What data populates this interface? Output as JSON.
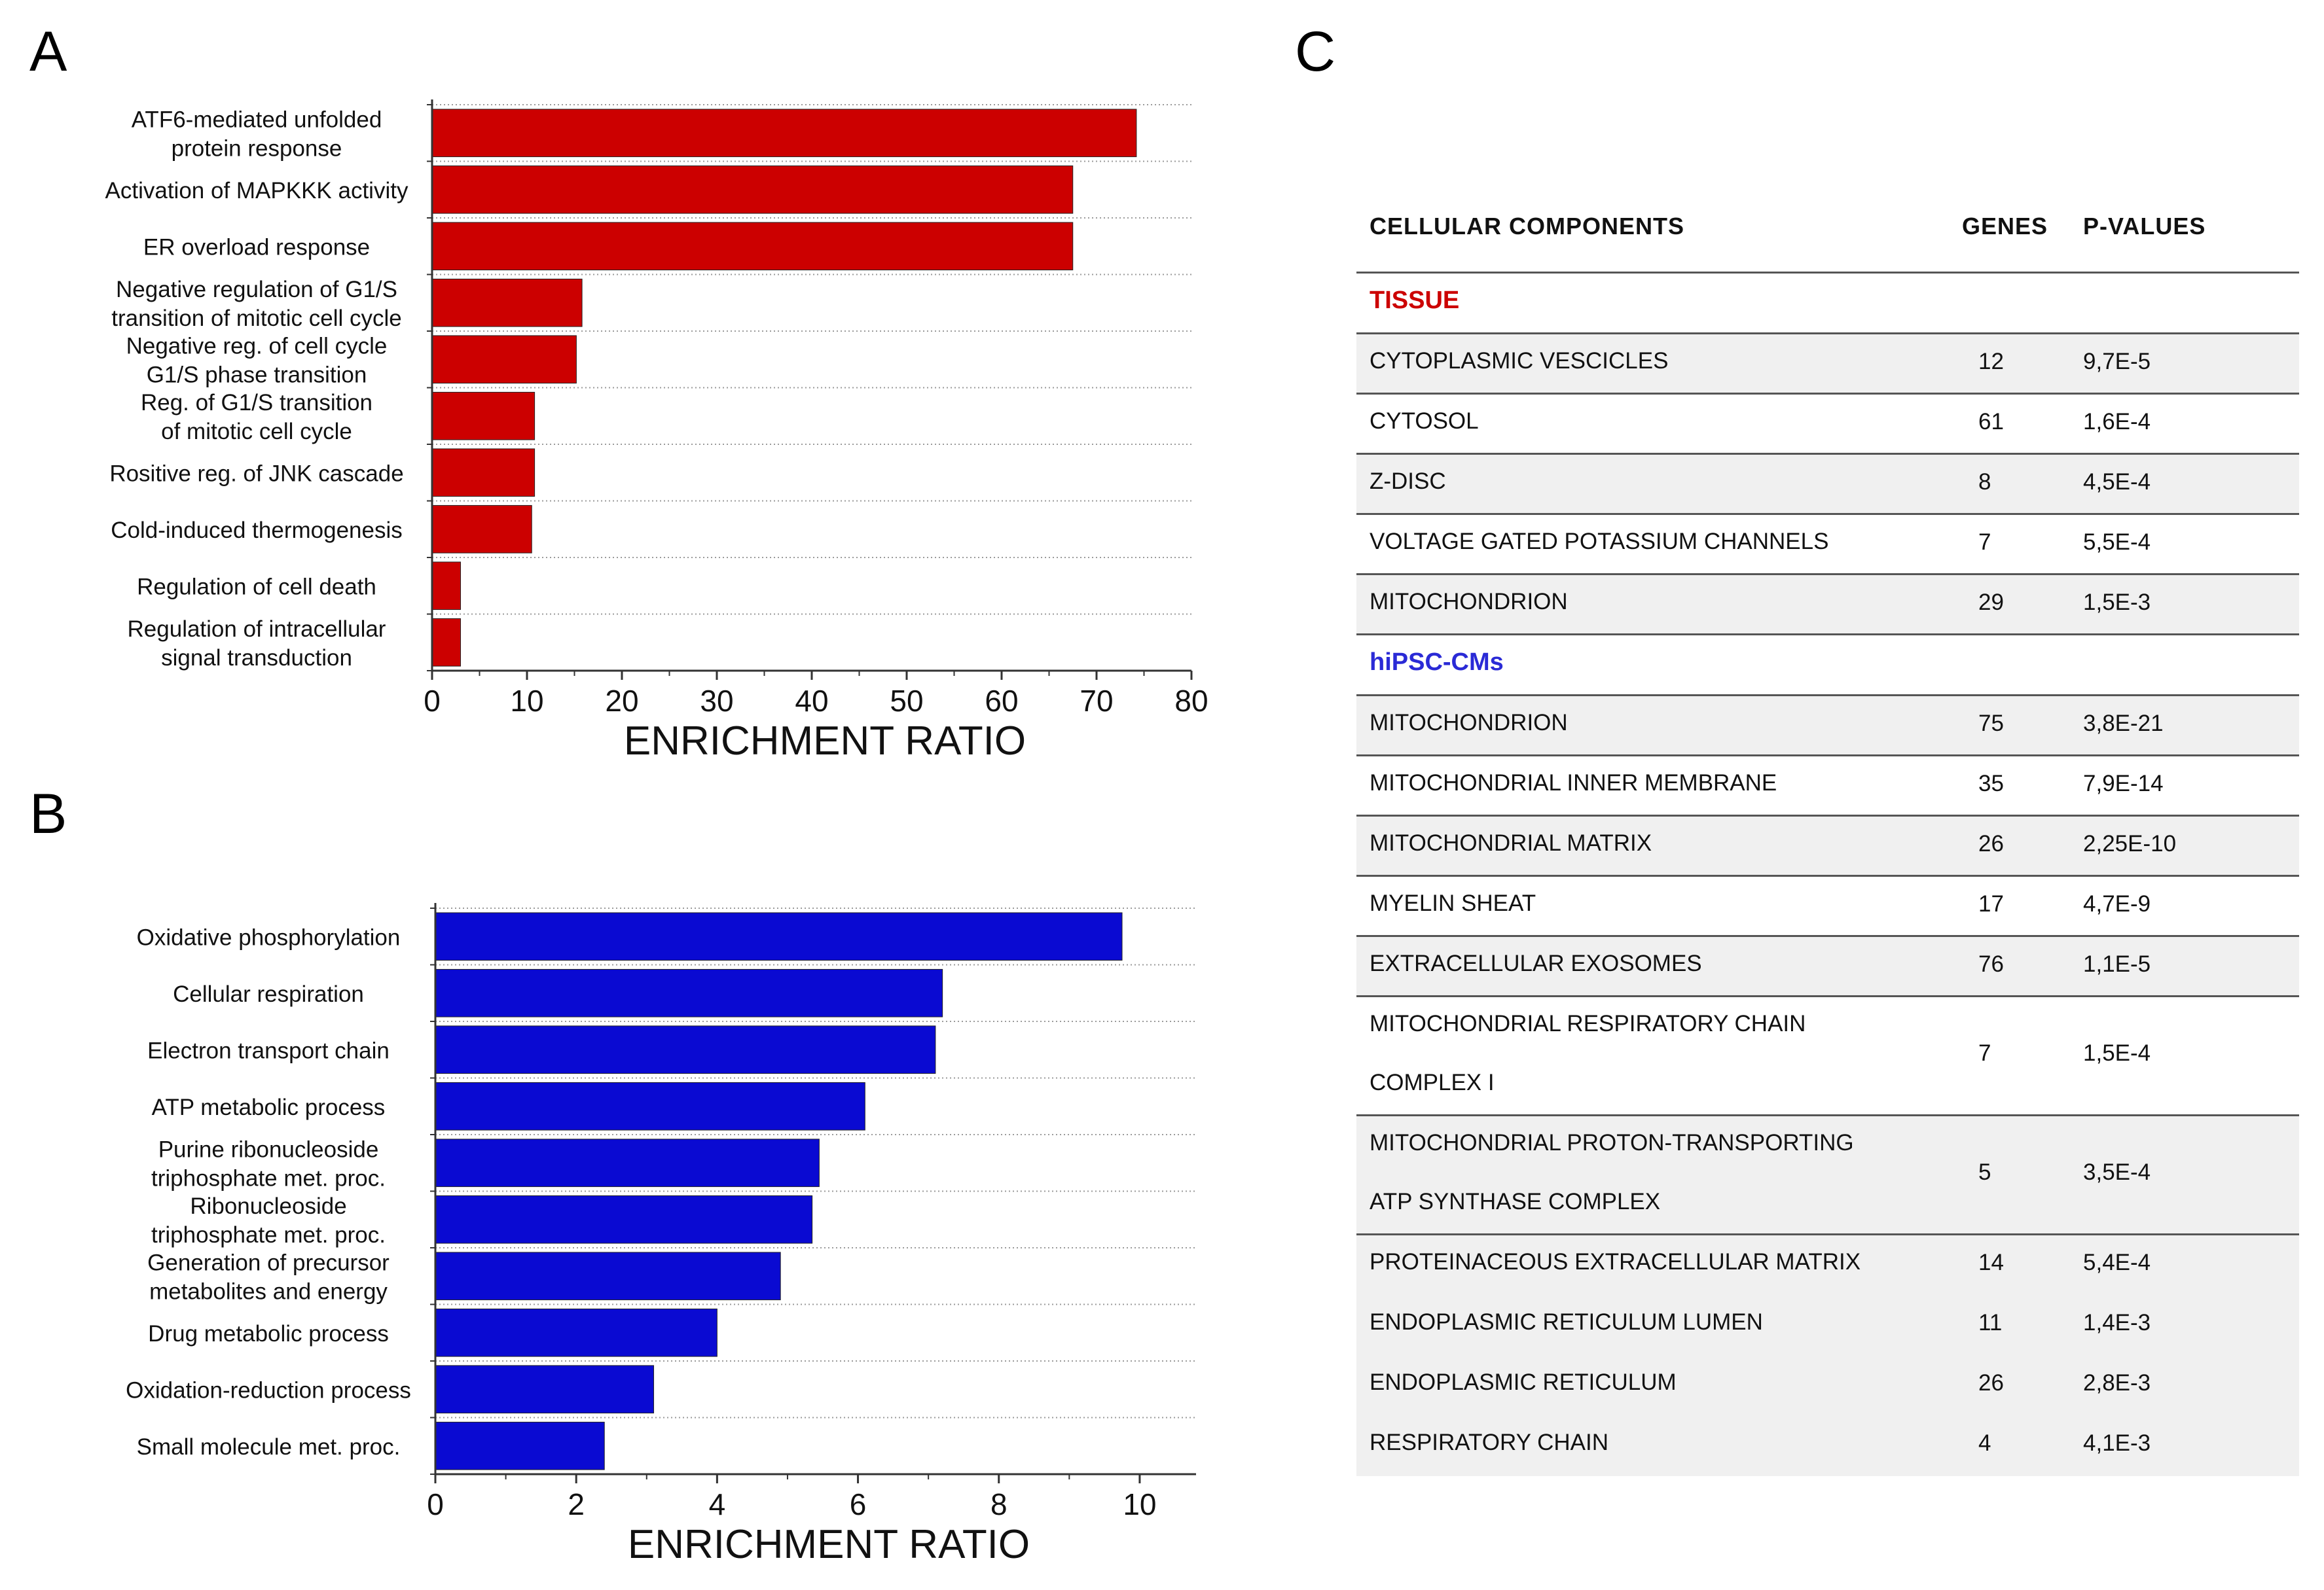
{
  "panels": {
    "a": "A",
    "b": "B",
    "c": "C"
  },
  "chart_data": [
    {
      "type": "bar",
      "orientation": "horizontal",
      "categories": [
        [
          "ATF6-mediated unfolded",
          "protein response"
        ],
        [
          "Activation of MAPKKK activity"
        ],
        [
          "ER overload response"
        ],
        [
          "Negative regulation of G1/S",
          "transition of mitotic cell cycle"
        ],
        [
          "Negative reg. of cell cycle",
          "G1/S phase transition"
        ],
        [
          "Reg. of G1/S transition",
          "of mitotic cell cycle"
        ],
        [
          "Rositive reg. of JNK cascade"
        ],
        [
          "Cold-induced thermogenesis"
        ],
        [
          "Regulation of cell death"
        ],
        [
          "Regulation of intracellular",
          "signal transduction"
        ]
      ],
      "values": [
        74.2,
        67.5,
        67.5,
        15.8,
        15.2,
        10.8,
        10.8,
        10.5,
        3.0,
        3.0
      ],
      "xlabel": "ENRICHMENT RATIO",
      "xlim": [
        0,
        80
      ],
      "xticks": [
        "0",
        "10",
        "20",
        "30",
        "40",
        "50",
        "60",
        "70",
        "80"
      ],
      "color": "#cc0000",
      "grid": "dotted row separators"
    },
    {
      "type": "bar",
      "orientation": "horizontal",
      "categories": [
        [
          "Oxidative phosphorylation"
        ],
        [
          "Cellular respiration"
        ],
        [
          "Electron transport chain"
        ],
        [
          "ATP metabolic process"
        ],
        [
          "Purine ribonucleoside",
          "triphosphate met. proc."
        ],
        [
          "Ribonucleoside",
          "triphosphate met. proc."
        ],
        [
          "Generation of precursor",
          "metabolites and energy"
        ],
        [
          "Drug metabolic process"
        ],
        [
          "Oxidation-reduction process"
        ],
        [
          "Small molecule met. proc."
        ]
      ],
      "values": [
        9.75,
        7.2,
        7.1,
        6.1,
        5.45,
        5.35,
        4.9,
        4.0,
        3.1,
        2.4
      ],
      "xlabel": "ENRICHMENT RATIO",
      "xlim": [
        0,
        10.8
      ],
      "xticks": [
        "0",
        "2",
        "4",
        "6",
        "8",
        "10"
      ],
      "color": "#0a0ad2",
      "grid": "dotted row separators"
    },
    {
      "type": "table",
      "headers": [
        "CELLULAR COMPONENTS",
        "GENES",
        "P-VALUES"
      ],
      "groups": [
        {
          "name": "TISSUE",
          "color": "#cc0000",
          "rows": [
            {
              "component": "CYTOPLASMIC VESCICLES",
              "genes": "12",
              "p": "9,7E-5"
            },
            {
              "component": "CYTOSOL",
              "genes": "61",
              "p": "1,6E-4"
            },
            {
              "component": "Z-DISC",
              "genes": "8",
              "p": "4,5E-4"
            },
            {
              "component": "VOLTAGE GATED POTASSIUM CHANNELS",
              "genes": "7",
              "p": "5,5E-4"
            },
            {
              "component": "MITOCHONDRION",
              "genes": "29",
              "p": "1,5E-3"
            }
          ]
        },
        {
          "name": "hiPSC-CMs",
          "color": "#2a2ad6",
          "rows": [
            {
              "component": "MITOCHONDRION",
              "genes": "75",
              "p": "3,8E-21"
            },
            {
              "component": "MITOCHONDRIAL INNER MEMBRANE",
              "genes": "35",
              "p": "7,9E-14"
            },
            {
              "component": "MITOCHONDRIAL MATRIX",
              "genes": "26",
              "p": "2,25E-10"
            },
            {
              "component": "MYELIN SHEAT",
              "genes": "17",
              "p": "4,7E-9"
            },
            {
              "component": "EXTRACELLULAR EXOSOMES",
              "genes": "76",
              "p": "1,1E-5"
            },
            {
              "component": "MITOCHONDRIAL RESPIRATORY CHAIN COMPLEX I",
              "genes": "7",
              "p": "1,5E-4"
            },
            {
              "component": "MITOCHONDRIAL PROTON-TRANSPORTING ATP SYNTHASE COMPLEX",
              "genes": "5",
              "p": "3,5E-4"
            },
            {
              "component": "PROTEINACEOUS EXTRACELLULAR MATRIX",
              "genes": "14",
              "p": "5,4E-4"
            },
            {
              "component": "ENDOPLASMIC RETICULUM LUMEN",
              "genes": "11",
              "p": "1,4E-3"
            },
            {
              "component": "ENDOPLASMIC RETICULUM",
              "genes": "26",
              "p": "2,8E-3"
            },
            {
              "component": "RESPIRATORY CHAIN",
              "genes": "4",
              "p": "4,1E-3"
            }
          ]
        }
      ]
    }
  ]
}
